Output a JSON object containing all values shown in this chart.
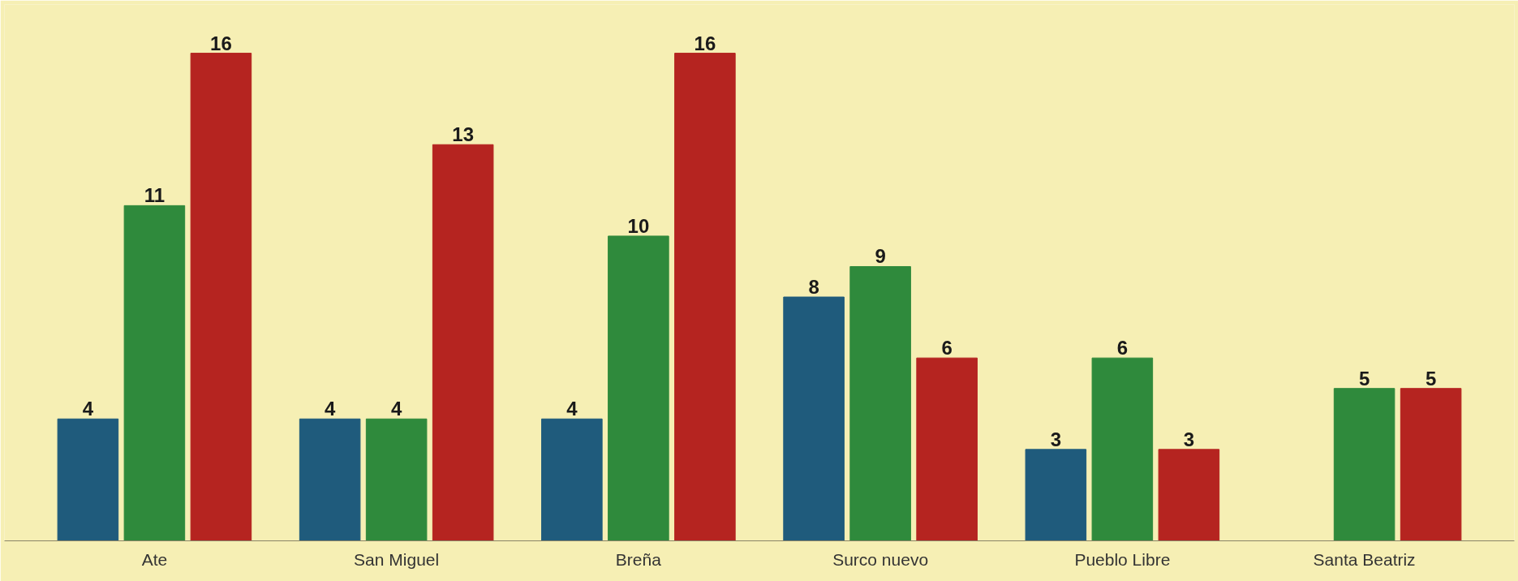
{
  "chart_data": {
    "type": "bar",
    "categories": [
      "Ate",
      "San Miguel",
      "Breña",
      "Surco nuevo",
      "Pueblo Libre",
      "Santa Beatriz"
    ],
    "series": [
      {
        "color": "#1f5b7c",
        "values": [
          4,
          4,
          4,
          8,
          3,
          null
        ]
      },
      {
        "color": "#2f8a3c",
        "values": [
          11,
          4,
          10,
          9,
          6,
          5
        ]
      },
      {
        "color": "#b52420",
        "values": [
          16,
          13,
          16,
          6,
          3,
          5
        ]
      }
    ],
    "data_labels": true
  }
}
